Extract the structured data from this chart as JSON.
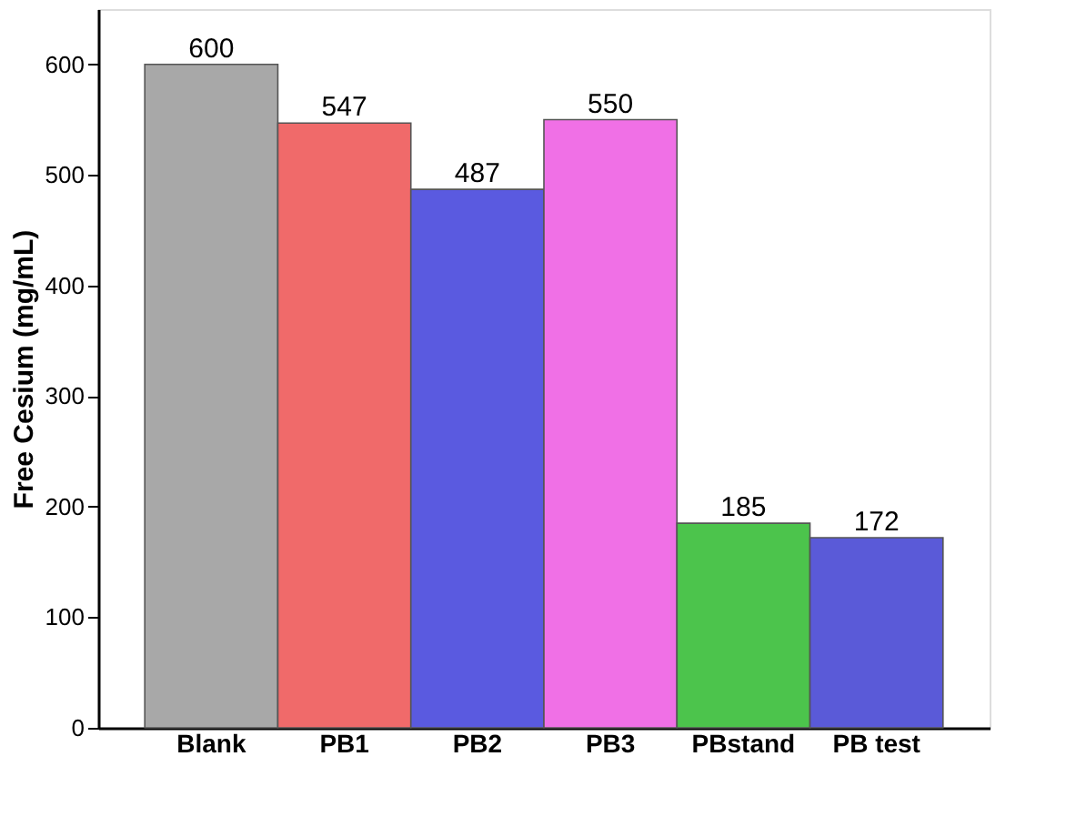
{
  "chart_data": {
    "type": "bar",
    "ylabel": "Free Cesium (mg/mL)",
    "categories": [
      "Blank",
      "PB1",
      "PB2",
      "PB3",
      "PBstand",
      "PB test"
    ],
    "values": [
      600,
      547,
      487,
      550,
      185,
      172
    ],
    "colors": [
      "#a8a8a8",
      "#f06a6a",
      "#5a5ae0",
      "#f070e6",
      "#4cc44c",
      "#5a5ad8"
    ],
    "ylim": [
      0,
      650
    ],
    "yticks": [
      0,
      100,
      200,
      300,
      400,
      500,
      600
    ],
    "grid": false,
    "data_labels": true
  }
}
